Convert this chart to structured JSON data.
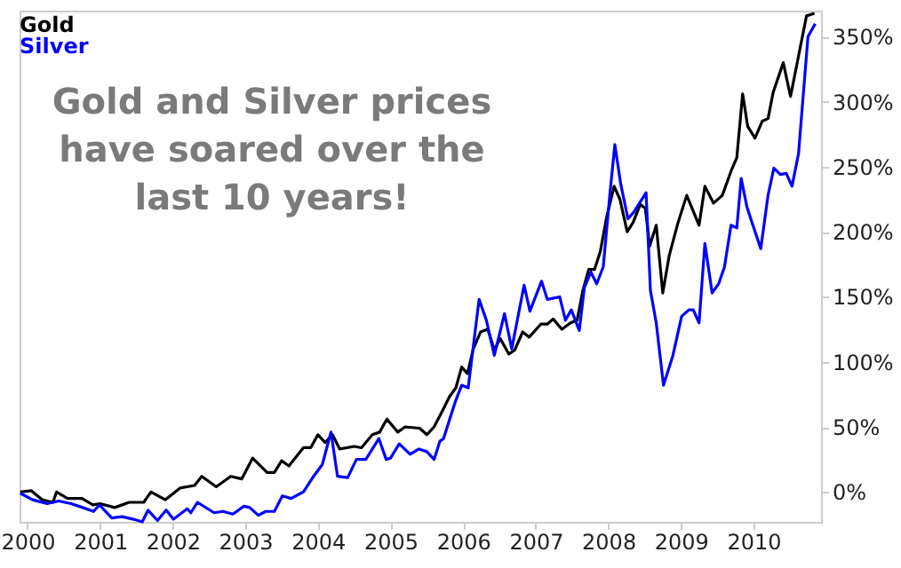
{
  "chart_data": {
    "type": "line",
    "annotations": [
      "Gold and Silver prices have soared over the last 10 years!"
    ],
    "series": [
      {
        "name": "Gold",
        "color": "#000000",
        "x": [
          1999.9,
          2000.05,
          2000.2,
          2000.35,
          2000.4,
          2000.55,
          2000.75,
          2000.9,
          2001.0,
          2001.2,
          2001.4,
          2001.6,
          2001.7,
          2001.9,
          2002.1,
          2002.3,
          2002.4,
          2002.6,
          2002.8,
          2002.95,
          2003.1,
          2003.3,
          2003.4,
          2003.5,
          2003.6,
          2003.8,
          2003.9,
          2004.0,
          2004.1,
          2004.2,
          2004.3,
          2004.5,
          2004.6,
          2004.75,
          2004.85,
          2004.95,
          2005.1,
          2005.2,
          2005.4,
          2005.5,
          2005.6,
          2005.73,
          2005.81,
          2005.9,
          2005.98,
          2006.06,
          2006.14,
          2006.24,
          2006.34,
          2006.43,
          2006.51,
          2006.63,
          2006.71,
          2006.82,
          2006.91,
          2007.07,
          2007.16,
          2007.24,
          2007.36,
          2007.48,
          2007.57,
          2007.65,
          2007.73,
          2007.81,
          2007.89,
          2007.98,
          2008.08,
          2008.16,
          2008.26,
          2008.34,
          2008.44,
          2008.51,
          2008.57,
          2008.66,
          2008.75,
          2008.84,
          2008.96,
          2009.08,
          2009.25,
          2009.33,
          2009.45,
          2009.57,
          2009.7,
          2009.77,
          2009.85,
          2009.92,
          2010.02,
          2010.12,
          2010.2,
          2010.27,
          2010.41,
          2010.51,
          2010.62,
          2010.73,
          2010.84
        ],
        "values": [
          0,
          1,
          -6,
          -8,
          0,
          -5,
          -5,
          -10,
          -9,
          -12,
          -8,
          -8,
          0,
          -6,
          3,
          5,
          12,
          4,
          12,
          10,
          26,
          15,
          15,
          24,
          20,
          34,
          34,
          44,
          38,
          44,
          33,
          35,
          34,
          44,
          46,
          56,
          46,
          50,
          49,
          44,
          50,
          64,
          73,
          80,
          96,
          91,
          110,
          123,
          125,
          109,
          118,
          106,
          109,
          123,
          119,
          129,
          129,
          133,
          125,
          130,
          132,
          155,
          171,
          171,
          185,
          212,
          235,
          225,
          200,
          207,
          221,
          218,
          189,
          205,
          153,
          182,
          207,
          228,
          205,
          235,
          222,
          228,
          248,
          257,
          306,
          281,
          272,
          285,
          287,
          307,
          330,
          304,
          335,
          366,
          368
        ]
      },
      {
        "name": "Silver",
        "color": "#0000ff",
        "x": [
          1999.9,
          2000.07,
          2000.27,
          2000.43,
          2000.6,
          2000.76,
          2000.91,
          2000.99,
          2001.16,
          2001.3,
          2001.46,
          2001.58,
          2001.66,
          2001.79,
          2001.91,
          2002.01,
          2002.2,
          2002.25,
          2002.34,
          2002.57,
          2002.69,
          2002.83,
          2002.98,
          2003.06,
          2003.18,
          2003.28,
          2003.4,
          2003.51,
          2003.63,
          2003.8,
          2003.94,
          2004.06,
          2004.18,
          2004.27,
          2004.41,
          2004.53,
          2004.66,
          2004.84,
          2004.94,
          2005.0,
          2005.12,
          2005.27,
          2005.39,
          2005.5,
          2005.6,
          2005.68,
          2005.73,
          2005.89,
          2005.98,
          2006.07,
          2006.22,
          2006.32,
          2006.43,
          2006.57,
          2006.67,
          2006.84,
          2006.92,
          2007.08,
          2007.16,
          2007.33,
          2007.41,
          2007.49,
          2007.6,
          2007.67,
          2007.76,
          2007.84,
          2007.93,
          2008.02,
          2008.09,
          2008.17,
          2008.27,
          2008.35,
          2008.52,
          2008.58,
          2008.66,
          2008.76,
          2008.89,
          2009.01,
          2009.11,
          2009.17,
          2009.25,
          2009.33,
          2009.43,
          2009.52,
          2009.6,
          2009.69,
          2009.77,
          2009.83,
          2009.91,
          2009.98,
          2010.1,
          2010.2,
          2010.28,
          2010.37,
          2010.45,
          2010.53,
          2010.62,
          2010.75,
          2010.85
        ],
        "values": [
          -1,
          -6,
          -9,
          -7,
          -9,
          -12,
          -15,
          -10,
          -20,
          -19,
          -21,
          -23,
          -14,
          -22,
          -14,
          -21,
          -13,
          -16,
          -8,
          -16,
          -15,
          -17,
          -11,
          -12,
          -18,
          -15,
          -15,
          -3,
          -5,
          0,
          12,
          21,
          46,
          12,
          11,
          25,
          25,
          41,
          25,
          26,
          37,
          29,
          33,
          31,
          25,
          39,
          41,
          69,
          82,
          80,
          148,
          132,
          105,
          137,
          110,
          159,
          139,
          162,
          148,
          150,
          132,
          140,
          124,
          157,
          169,
          160,
          173,
          228,
          267,
          237,
          210,
          215,
          230,
          155,
          130,
          82,
          105,
          135,
          140,
          140,
          130,
          191,
          153,
          160,
          173,
          205,
          203,
          241,
          219,
          207,
          187,
          228,
          249,
          244,
          245,
          235,
          260,
          350,
          360
        ]
      }
    ],
    "xlim": [
      1999.89,
      2010.93
    ],
    "xticks": [
      2000,
      2001,
      2002,
      2003,
      2004,
      2005,
      2006,
      2007,
      2008,
      2009,
      2010
    ],
    "ylim": [
      -23,
      370
    ],
    "yticks": [
      {
        "value": 0,
        "label": "0%"
      },
      {
        "value": 50,
        "label": "50%"
      },
      {
        "value": 100,
        "label": "100%"
      },
      {
        "value": 150,
        "label": "150%"
      },
      {
        "value": 200,
        "label": "200%"
      },
      {
        "value": 250,
        "label": "250%"
      },
      {
        "value": 300,
        "label": "300%"
      },
      {
        "value": 350,
        "label": "350%"
      }
    ],
    "grid": false,
    "legend": "top left",
    "marker": "none",
    "line_style": "solid"
  }
}
